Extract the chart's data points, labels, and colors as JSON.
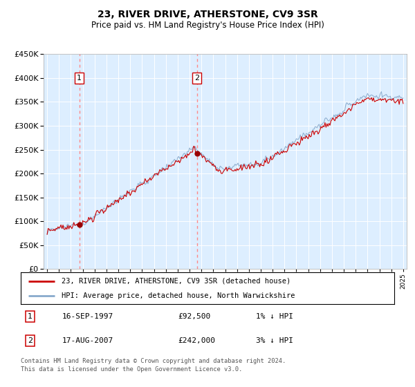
{
  "title": "23, RIVER DRIVE, ATHERSTONE, CV9 3SR",
  "subtitle": "Price paid vs. HM Land Registry's House Price Index (HPI)",
  "legend_line1": "23, RIVER DRIVE, ATHERSTONE, CV9 3SR (detached house)",
  "legend_line2": "HPI: Average price, detached house, North Warwickshire",
  "footnote1": "Contains HM Land Registry data © Crown copyright and database right 2024.",
  "footnote2": "This data is licensed under the Open Government Licence v3.0.",
  "sale1_date": "16-SEP-1997",
  "sale1_price": "£92,500",
  "sale1_hpi": "1% ↓ HPI",
  "sale1_year": 1997.71,
  "sale1_value": 92500,
  "sale2_date": "17-AUG-2007",
  "sale2_price": "£242,000",
  "sale2_hpi": "3% ↓ HPI",
  "sale2_year": 2007.63,
  "sale2_value": 242000,
  "ylim": [
    0,
    450000
  ],
  "yticks": [
    0,
    50000,
    100000,
    150000,
    200000,
    250000,
    300000,
    350000,
    400000,
    450000
  ],
  "xlim_start": 1994.7,
  "xlim_end": 2025.3,
  "background_color": "#ddeeff",
  "red_line_color": "#cc0000",
  "blue_line_color": "#88aacc",
  "grid_color": "#ffffff",
  "marker_color": "#990000",
  "dashed_line_color": "#ff8888"
}
